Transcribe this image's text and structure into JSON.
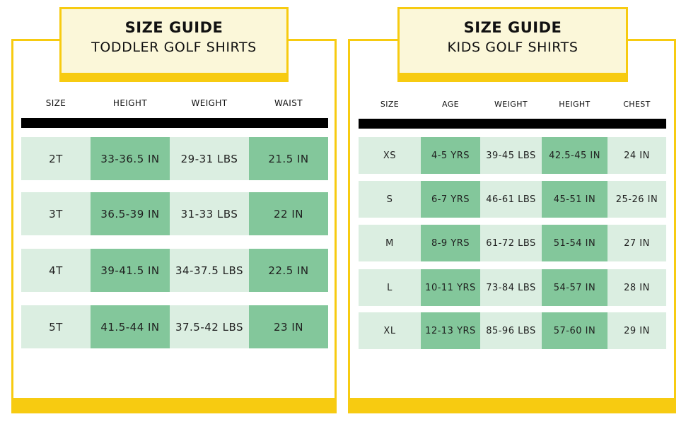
{
  "toddler": {
    "title": "SIZE GUIDE",
    "subtitle": "TODDLER GOLF SHIRTS",
    "headers": [
      "SIZE",
      "HEIGHT",
      "WEIGHT",
      "WAIST"
    ],
    "rows": [
      [
        "2T",
        "33-36.5 IN",
        "29-31 LBS",
        "21.5 IN"
      ],
      [
        "3T",
        "36.5-39 IN",
        "31-33 LBS",
        "22 IN"
      ],
      [
        "4T",
        "39-41.5 IN",
        "34-37.5 LBS",
        "22.5 IN"
      ],
      [
        "5T",
        "41.5-44 IN",
        "37.5-42 LBS",
        "23 IN"
      ]
    ]
  },
  "kids": {
    "title": "SIZE GUIDE",
    "subtitle": "KIDS GOLF SHIRTS",
    "headers": [
      "SIZE",
      "AGE",
      "WEIGHT",
      "HEIGHT",
      "CHEST"
    ],
    "rows": [
      [
        "XS",
        "4-5 YRS",
        "39-45 LBS",
        "42.5-45 IN",
        "24 IN"
      ],
      [
        "S",
        "6-7 YRS",
        "46-61 LBS",
        "45-51 IN",
        "25-26 IN"
      ],
      [
        "M",
        "8-9 YRS",
        "61-72 LBS",
        "51-54 IN",
        "27 IN"
      ],
      [
        "L",
        "10-11 YRS",
        "73-84 LBS",
        "54-57 IN",
        "28 IN"
      ],
      [
        "XL",
        "12-13 YRS",
        "85-96 LBS",
        "57-60 IN",
        "29 IN"
      ]
    ]
  },
  "colors": {
    "accent_yellow": "#f7cb11",
    "title_background": "#fbf7d9",
    "row_light_green": "#dbeee1",
    "cell_green": "#83c79b",
    "header_bar": "#000000"
  }
}
